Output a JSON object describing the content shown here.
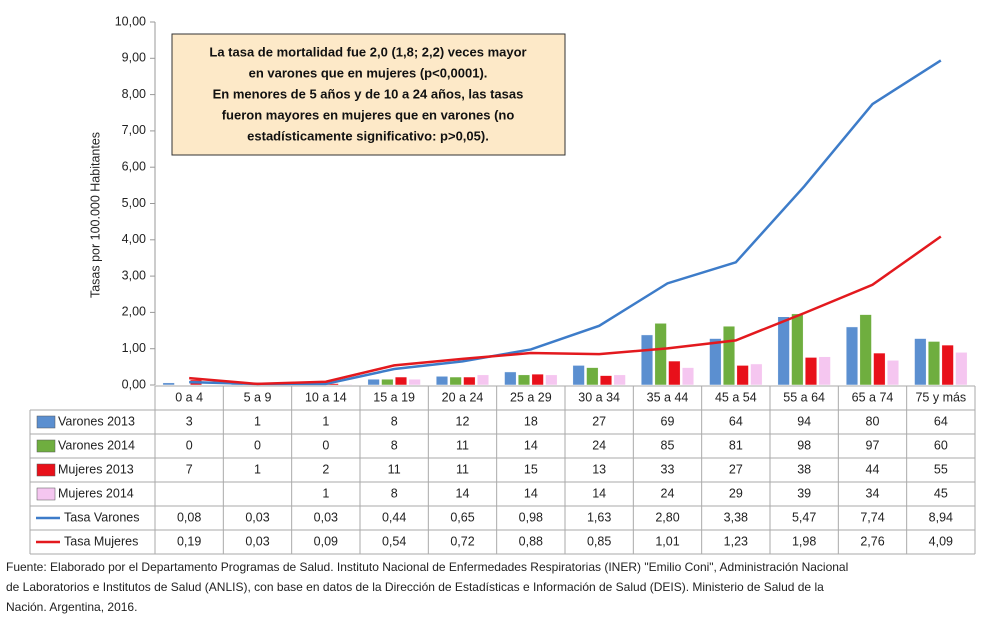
{
  "chart_data": {
    "type": "combo",
    "y_label": "Tasas por 100.000 Habitantes",
    "annotation": [
      "La tasa de mortalidad fue 2,0 (1,8; 2,2) veces mayor",
      "en varones que en mujeres (p<0,0001).",
      "En menores de 5 años y de 10 a 24 años, las tasas",
      "fueron mayores en mujeres que en varones (no",
      "estadísticamente significativo: p>0,05)."
    ],
    "source": [
      "Fuente: Elaborado por el Departamento Programas de Salud. Instituto Nacional de Enfermedades Respiratorias (INER) \"Emilio Coni\", Administración Nacional",
      "de Laboratorios e Institutos de Salud (ANLIS), con base en datos de la Dirección de Estadísticas e Información de Salud (DEIS). Ministerio de Salud de la",
      "Nación. Argentina, 2016."
    ],
    "categories": [
      "0 a 4",
      "5 a 9",
      "10 a 14",
      "15 a 19",
      "20 a 24",
      "25 a 29",
      "30 a 34",
      "35 a 44",
      "45 a 54",
      "55 a 64",
      "65 a 74",
      "75 y más"
    ],
    "ylim": [
      0,
      10
    ],
    "yticks": [
      {
        "value": 0,
        "label": "0,00"
      },
      {
        "value": 1,
        "label": "1,00"
      },
      {
        "value": 2,
        "label": "2,00"
      },
      {
        "value": 3,
        "label": "3,00"
      },
      {
        "value": 4,
        "label": "4,00"
      },
      {
        "value": 5,
        "label": "5,00"
      },
      {
        "value": 6,
        "label": "6,00"
      },
      {
        "value": 7,
        "label": "7,00"
      },
      {
        "value": 8,
        "label": "8,00"
      },
      {
        "value": 9,
        "label": "9,00"
      },
      {
        "value": 10,
        "label": "10,00"
      }
    ],
    "y2lim": [
      0,
      500
    ],
    "series": [
      {
        "name": "Varones 2013",
        "type": "bar",
        "axis": "y2",
        "color": "#5b8fd0",
        "values": [
          3,
          1,
          1,
          8,
          12,
          18,
          27,
          69,
          64,
          94,
          80,
          64
        ]
      },
      {
        "name": "Varones 2014",
        "type": "bar",
        "axis": "y2",
        "color": "#6fae3f",
        "values": [
          0,
          0,
          0,
          8,
          11,
          14,
          24,
          85,
          81,
          98,
          97,
          60
        ]
      },
      {
        "name": "Mujeres 2013",
        "type": "bar",
        "axis": "y2",
        "color": "#e8101a",
        "values": [
          7,
          1,
          2,
          11,
          11,
          15,
          13,
          33,
          27,
          38,
          44,
          55
        ]
      },
      {
        "name": "Mujeres 2014",
        "type": "bar",
        "axis": "y2",
        "color": "#f5c6f0",
        "values": [
          null,
          null,
          1,
          8,
          14,
          14,
          14,
          24,
          29,
          39,
          34,
          45
        ]
      },
      {
        "name": "Tasa Varones",
        "type": "line",
        "color": "#3d7cc9",
        "values": [
          0.08,
          0.03,
          0.03,
          0.44,
          0.65,
          0.98,
          1.63,
          2.8,
          3.38,
          5.47,
          7.74,
          8.94
        ],
        "value_labels": [
          "0,08",
          "0,03",
          "0,03",
          "0,44",
          "0,65",
          "0,98",
          "1,63",
          "2,80",
          "3,38",
          "5,47",
          "7,74",
          "8,94"
        ]
      },
      {
        "name": "Tasa Mujeres",
        "type": "line",
        "color": "#e3191e",
        "values": [
          0.19,
          0.03,
          0.09,
          0.54,
          0.72,
          0.88,
          0.85,
          1.01,
          1.23,
          1.98,
          2.76,
          4.09
        ],
        "value_labels": [
          "0,19",
          "0,03",
          "0,09",
          "0,54",
          "0,72",
          "0,88",
          "0,85",
          "1,01",
          "1,23",
          "1,98",
          "2,76",
          "4,09"
        ]
      }
    ]
  }
}
